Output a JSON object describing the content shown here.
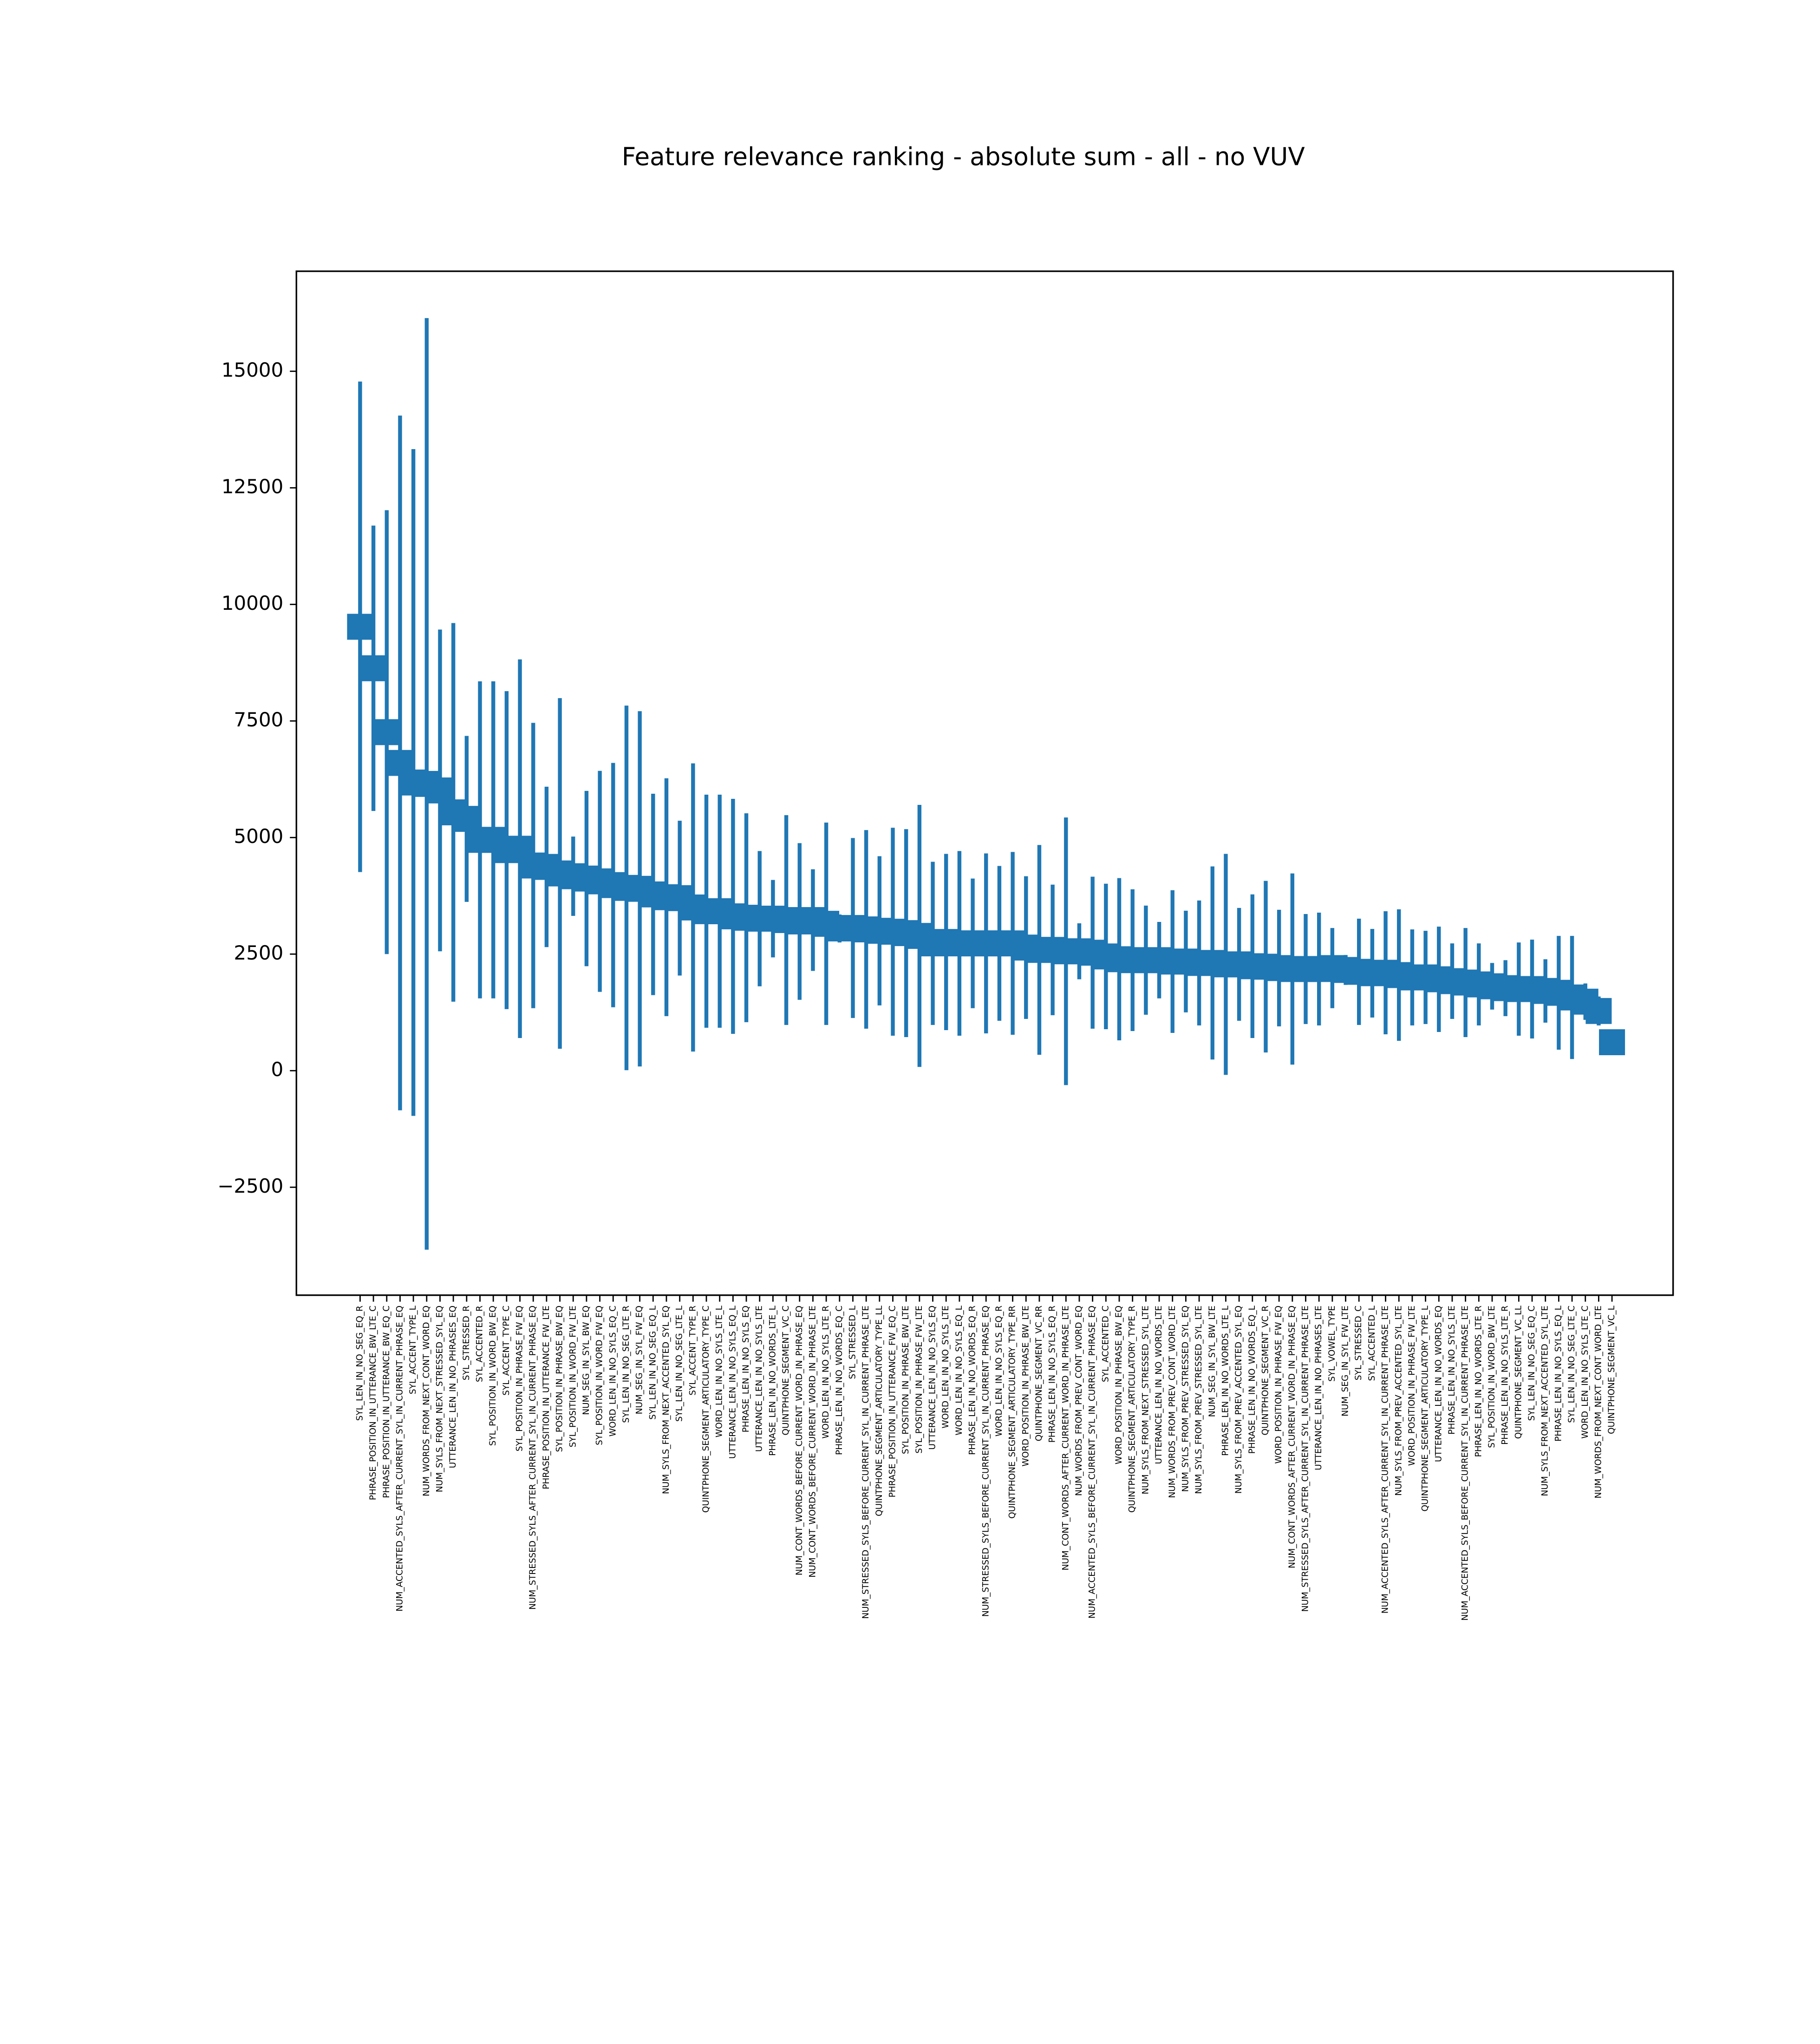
{
  "chart_data": {
    "type": "errorbar",
    "title": "Feature relevance ranking - absolute sum - all - no VUV",
    "color": "#1f77b4",
    "ylim": [
      -4815,
      17145
    ],
    "yticks": [
      {
        "value": -2500,
        "label": "−2500"
      },
      0,
      2500,
      5000,
      7500,
      10000,
      12500,
      15000
    ],
    "categories": [
      "SYL_LEN_IN_NO_SEG_EQ_R",
      "PHRASE_POSITION_IN_UTTERANCE_BW_LTE_C",
      "PHRASE_POSITION_IN_UTTERANCE_BW_EQ_C",
      "NUM_ACCENTED_SYLS_AFTER_CURRENT_SYL_IN_CURRENT_PHRASE_EQ",
      "SYL_ACCENT_TYPE_L",
      "NUM_WORDS_FROM_NEXT_CONT_WORD_EQ",
      "NUM_SYLS_FROM_NEXT_STRESSED_SYL_EQ",
      "UTTERANCE_LEN_IN_NO_PHRASES_EQ",
      "SYL_STRESSED_R",
      "SYL_ACCENTED_R",
      "SYL_POSITION_IN_WORD_BW_EQ",
      "SYL_ACCENT_TYPE_C",
      "SYL_POSITION_IN_PHRASE_FW_EQ",
      "NUM_STRESSED_SYLS_AFTER_CURRENT_SYL_IN_CURRENT_PHRASE_EQ",
      "PHRASE_POSITION_IN_UTTERANCE_FW_LTE",
      "SYL_POSITION_IN_PHRASE_BW_EQ",
      "SYL_POSITION_IN_WORD_FW_LTE",
      "NUM_SEG_IN_SYL_BW_EQ",
      "SYL_POSITION_IN_WORD_FW_EQ",
      "WORD_LEN_IN_NO_SYLS_EQ_C",
      "SYL_LEN_IN_NO_SEG_LTE_R",
      "NUM_SEG_IN_SYL_FW_EQ",
      "SYL_LEN_IN_NO_SEG_EQ_L",
      "NUM_SYLS_FROM_NEXT_ACCENTED_SYL_EQ",
      "SYL_LEN_IN_NO_SEG_LTE_L",
      "SYL_ACCENT_TYPE_R",
      "QUINTPHONE_SEGMENT_ARTICULATORY_TYPE_C",
      "WORD_LEN_IN_NO_SYLS_LTE_L",
      "UTTERANCE_LEN_IN_NO_SYLS_EQ_L",
      "PHRASE_LEN_IN_NO_SYLS_EQ",
      "UTTERANCE_LEN_IN_NO_SYLS_LTE",
      "PHRASE_LEN_IN_NO_WORDS_LTE_L",
      "QUINTPHONE_SEGMENT_VC_C",
      "NUM_CONT_WORDS_BEFORE_CURRENT_WORD_IN_PHRASE_EQ",
      "NUM_CONT_WORDS_BEFORE_CURRENT_WORD_IN_PHRASE_LTE",
      "WORD_LEN_IN_NO_SYLS_LTE_R",
      "PHRASE_LEN_IN_NO_WORDS_EQ_C",
      "SYL_STRESSED_L",
      "NUM_STRESSED_SYLS_BEFORE_CURRENT_SYL_IN_CURRENT_PHRASE_LTE",
      "QUINTPHONE_SEGMENT_ARTICULATORY_TYPE_LL",
      "PHRASE_POSITION_IN_UTTERANCE_FW_EQ_C",
      "SYL_POSITION_IN_PHRASE_BW_LTE",
      "SYL_POSITION_IN_PHRASE_FW_LTE",
      "UTTERANCE_LEN_IN_NO_SYLS_EQ",
      "WORD_LEN_IN_NO_SYLS_LTE",
      "WORD_LEN_IN_NO_SYLS_EQ_L",
      "PHRASE_LEN_IN_NO_WORDS_EQ_R",
      "NUM_STRESSED_SYLS_BEFORE_CURRENT_SYL_IN_CURRENT_PHRASE_EQ",
      "WORD_LEN_IN_NO_SYLS_EQ_R",
      "QUINTPHONE_SEGMENT_ARTICULATORY_TYPE_RR",
      "WORD_POSITION_IN_PHRASE_BW_LTE",
      "QUINTPHONE_SEGMENT_VC_RR",
      "PHRASE_LEN_IN_NO_SYLS_EQ_R",
      "NUM_CONT_WORDS_AFTER_CURRENT_WORD_IN_PHRASE_LTE",
      "NUM_WORDS_FROM_PREV_CONT_WORD_EQ",
      "NUM_ACCENTED_SYLS_BEFORE_CURRENT_SYL_IN_CURRENT_PHRASE_EQ",
      "SYL_ACCENTED_C",
      "WORD_POSITION_IN_PHRASE_BW_EQ",
      "QUINTPHONE_SEGMENT_ARTICULATORY_TYPE_R",
      "NUM_SYLS_FROM_NEXT_STRESSED_SYL_LTE",
      "UTTERANCE_LEN_IN_NO_WORDS_LTE",
      "NUM_WORDS_FROM_PREV_CONT_WORD_LTE",
      "NUM_SYLS_FROM_PREV_STRESSED_SYL_EQ",
      "NUM_SYLS_FROM_PREV_STRESSED_SYL_LTE",
      "NUM_SEG_IN_SYL_BW_LTE",
      "PHRASE_LEN_IN_NO_WORDS_LTE_L",
      "NUM_SYLS_FROM_PREV_ACCENTED_SYL_EQ",
      "PHRASE_LEN_IN_NO_WORDS_EQ_L",
      "QUINTPHONE_SEGMENT_VC_R",
      "WORD_POSITION_IN_PHRASE_FW_EQ",
      "NUM_CONT_WORDS_AFTER_CURRENT_WORD_IN_PHRASE_EQ",
      "NUM_STRESSED_SYLS_AFTER_CURRENT_SYL_IN_CURRENT_PHRASE_LTE",
      "UTTERANCE_LEN_IN_NO_PHRASES_LTE",
      "SYL_VOWEL_TYPE",
      "NUM_SEG_IN_SYL_FW_LTE",
      "SYL_STRESSED_C",
      "SYL_ACCENTED_L",
      "NUM_ACCENTED_SYLS_AFTER_CURRENT_SYL_IN_CURRENT_PHRASE_LTE",
      "NUM_SYLS_FROM_PREV_ACCENTED_SYL_LTE",
      "WORD_POSITION_IN_PHRASE_FW_LTE",
      "QUINTPHONE_SEGMENT_ARTICULATORY_TYPE_L",
      "UTTERANCE_LEN_IN_NO_WORDS_EQ",
      "PHRASE_LEN_IN_NO_SYLS_LTE",
      "NUM_ACCENTED_SYLS_BEFORE_CURRENT_SYL_IN_CURRENT_PHRASE_LTE",
      "PHRASE_LEN_IN_NO_WORDS_LTE_R",
      "SYL_POSITION_IN_WORD_BW_LTE",
      "PHRASE_LEN_IN_NO_SYLS_LTE_R",
      "QUINTPHONE_SEGMENT_VC_LL",
      "SYL_LEN_IN_NO_SEG_EQ_C",
      "NUM_SYLS_FROM_NEXT_ACCENTED_SYL_LTE",
      "PHRASE_LEN_IN_NO_SYLS_EQ_L",
      "SYL_LEN_IN_NO_SEG_LTE_C",
      "WORD_LEN_IN_NO_SYLS_LTE_C",
      "NUM_WORDS_FROM_NEXT_CONT_WORD_LTE",
      "QUINTPHONE_SEGMENT_VC_L"
    ],
    "values": [
      9520,
      8630,
      7260,
      6600,
      6180,
      6150,
      6010,
      5540,
      5400,
      4950,
      4950,
      4730,
      4760,
      4400,
      4370,
      4230,
      4170,
      4120,
      4060,
      3980,
      3920,
      3900,
      3780,
      3720,
      3700,
      3500,
      3420,
      3420,
      3310,
      3280,
      3260,
      3260,
      3230,
      3200,
      3230,
      3150,
      3050,
      3060,
      3030,
      3000,
      2980,
      2950,
      2890,
      2730,
      2760,
      2730,
      2730,
      2730,
      2730,
      2730,
      2640,
      2590,
      2590,
      2560,
      2560,
      2530,
      2450,
      2390,
      2370,
      2370,
      2370,
      2340,
      2340,
      2310,
      2310,
      2280,
      2280,
      2240,
      2230,
      2200,
      2180,
      2180,
      2180,
      2200,
      2160,
      2120,
      2090,
      2100,
      2050,
      2000,
      2000,
      1960,
      1920,
      1890,
      1850,
      1810,
      1770,
      1750,
      1750,
      1710,
      1670,
      1570,
      1480,
      1280,
      610
    ],
    "errors": [
      5260,
      3060,
      4760,
      7450,
      7150,
      9990,
      3450,
      4060,
      1780,
      3400,
      3400,
      3410,
      4060,
      3060,
      1720,
      3760,
      850,
      1880,
      2370,
      2620,
      3910,
      3810,
      2160,
      2550,
      1660,
      3090,
      2500,
      2500,
      2520,
      2240,
      1450,
      830,
      2250,
      1680,
      1090,
      2170,
      300,
      1930,
      2130,
      1600,
      2230,
      2230,
      2810,
      1750,
      1890,
      1980,
      1390,
      1930,
      1660,
      1960,
      1530,
      2250,
      1400,
      2870,
      600,
      1630,
      1560,
      1740,
      1520,
      1170,
      820,
      1530,
      1090,
      1340,
      2070,
      2370,
      1210,
      1540,
      1840,
      1250,
      2050,
      1180,
      1210,
      860,
      320,
      1140,
      950,
      1320,
      1410,
      1030,
      1000,
      1130,
      810,
      1170,
      880,
      500,
      600,
      1000,
      1060,
      680,
      1220,
      1320,
      390,
      310,
      0
    ]
  }
}
